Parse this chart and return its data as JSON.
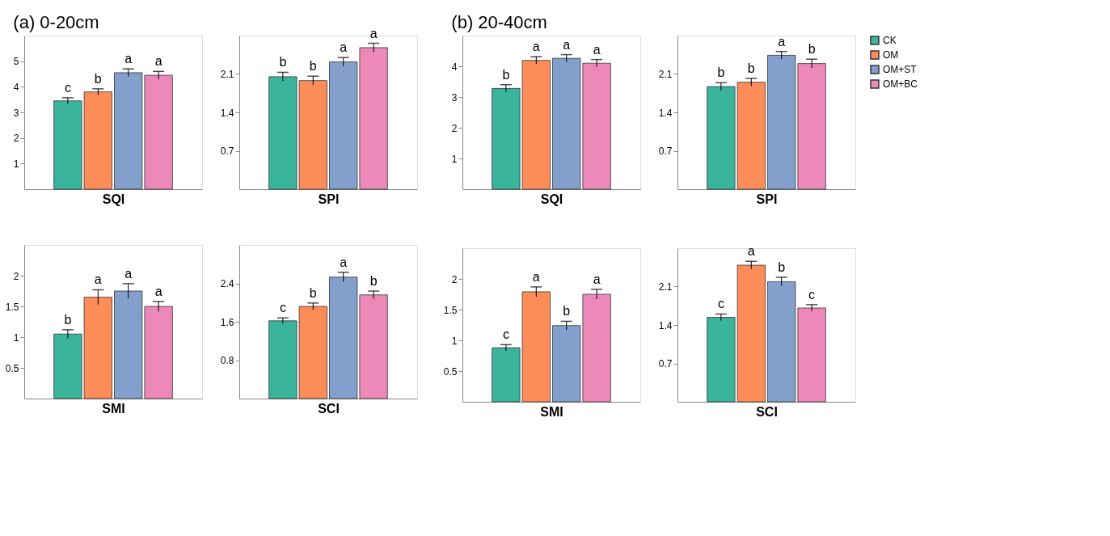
{
  "chart_data": [
    {
      "type": "bar",
      "title": "(a) 0-20cm",
      "xlabel": "SQI",
      "categories": [
        null
      ],
      "ylim": [
        0,
        6
      ],
      "yticks": [
        1,
        2,
        3,
        4,
        5
      ],
      "tick_labels": "y",
      "annotations": [
        "c",
        "b",
        "a",
        "a"
      ],
      "series": [
        {
          "color": "#3bb49c",
          "values": [
            3.45
          ],
          "errors": [
            0.12
          ]
        },
        {
          "color": "#fc8d59",
          "values": [
            3.8
          ],
          "errors": [
            0.12
          ]
        },
        {
          "color": "#839fcb",
          "values": [
            4.55
          ],
          "errors": [
            0.15
          ]
        },
        {
          "color": "#ec89b8",
          "values": [
            4.45
          ],
          "errors": [
            0.15
          ]
        }
      ]
    },
    {
      "type": "bar",
      "xlabel": "SPI",
      "categories": [
        null
      ],
      "ylim": [
        0,
        2.8
      ],
      "yticks": [
        0.7,
        1.4,
        2.1
      ],
      "tick_labels": "y",
      "annotations": [
        "b",
        "b",
        "a",
        "a"
      ],
      "series": [
        {
          "color": "#3bb49c",
          "values": [
            2.05
          ],
          "errors": [
            0.08
          ]
        },
        {
          "color": "#fc8d59",
          "values": [
            1.98
          ],
          "errors": [
            0.08
          ]
        },
        {
          "color": "#839fcb",
          "values": [
            2.32
          ],
          "errors": [
            0.08
          ]
        },
        {
          "color": "#ec89b8",
          "values": [
            2.58
          ],
          "errors": [
            0.08
          ]
        }
      ]
    },
    {
      "type": "bar",
      "xlabel": "SMI",
      "categories": [
        null
      ],
      "ylim": [
        0,
        2.5
      ],
      "yticks": [
        0.5,
        1,
        1.5,
        2
      ],
      "tick_labels": "y",
      "annotations": [
        "b",
        "a",
        "a",
        "a"
      ],
      "series": [
        {
          "color": "#3bb49c",
          "values": [
            1.05
          ],
          "errors": [
            0.07
          ]
        },
        {
          "color": "#fc8d59",
          "values": [
            1.65
          ],
          "errors": [
            0.12
          ]
        },
        {
          "color": "#839fcb",
          "values": [
            1.75
          ],
          "errors": [
            0.12
          ]
        },
        {
          "color": "#ec89b8",
          "values": [
            1.5
          ],
          "errors": [
            0.08
          ]
        }
      ]
    },
    {
      "type": "bar",
      "xlabel": "SCI",
      "categories": [
        null
      ],
      "ylim": [
        0,
        3.2
      ],
      "yticks": [
        0.8,
        1.6,
        2.4
      ],
      "tick_labels": "y",
      "annotations": [
        "c",
        "b",
        "a",
        "b"
      ],
      "series": [
        {
          "color": "#3bb49c",
          "values": [
            1.62
          ],
          "errors": [
            0.06
          ]
        },
        {
          "color": "#fc8d59",
          "values": [
            1.92
          ],
          "errors": [
            0.07
          ]
        },
        {
          "color": "#839fcb",
          "values": [
            2.53
          ],
          "errors": [
            0.1
          ]
        },
        {
          "color": "#ec89b8",
          "values": [
            2.16
          ],
          "errors": [
            0.08
          ]
        }
      ]
    },
    {
      "type": "bar",
      "title": "(b) 20-40cm",
      "xlabel": "SQI",
      "categories": [
        null
      ],
      "ylim": [
        0,
        5
      ],
      "yticks": [
        1,
        2,
        3,
        4
      ],
      "tick_labels": "y",
      "annotations": [
        "b",
        "a",
        "a",
        "a"
      ],
      "series": [
        {
          "color": "#3bb49c",
          "values": [
            3.28
          ],
          "errors": [
            0.12
          ]
        },
        {
          "color": "#fc8d59",
          "values": [
            4.19
          ],
          "errors": [
            0.12
          ]
        },
        {
          "color": "#839fcb",
          "values": [
            4.26
          ],
          "errors": [
            0.12
          ]
        },
        {
          "color": "#ec89b8",
          "values": [
            4.1
          ],
          "errors": [
            0.12
          ]
        }
      ]
    },
    {
      "type": "bar",
      "xlabel": "SPI",
      "categories": [
        null
      ],
      "ylim": [
        0,
        2.8
      ],
      "yticks": [
        0.7,
        1.4,
        2.1
      ],
      "tick_labels": "y",
      "legend": "top right",
      "annotations": [
        "b",
        "b",
        "a",
        "b"
      ],
      "series": [
        {
          "name": "CK",
          "color": "#3bb49c",
          "values": [
            1.87
          ],
          "errors": [
            0.07
          ]
        },
        {
          "name": "OM",
          "color": "#fc8d59",
          "values": [
            1.95
          ],
          "errors": [
            0.07
          ]
        },
        {
          "name": "OM+ST",
          "color": "#839fcb",
          "values": [
            2.44
          ],
          "errors": [
            0.07
          ]
        },
        {
          "name": "OM+BC",
          "color": "#ec89b8",
          "values": [
            2.29
          ],
          "errors": [
            0.08
          ]
        }
      ]
    },
    {
      "type": "bar",
      "xlabel": "SMI",
      "categories": [
        null
      ],
      "ylim": [
        0,
        2.5
      ],
      "yticks": [
        0.5,
        1,
        1.5,
        2
      ],
      "tick_labels": "y",
      "annotations": [
        "c",
        "a",
        "b",
        "a"
      ],
      "series": [
        {
          "color": "#3bb49c",
          "values": [
            0.88
          ],
          "errors": [
            0.05
          ]
        },
        {
          "color": "#fc8d59",
          "values": [
            1.79
          ],
          "errors": [
            0.08
          ]
        },
        {
          "color": "#839fcb",
          "values": [
            1.24
          ],
          "errors": [
            0.07
          ]
        },
        {
          "color": "#ec89b8",
          "values": [
            1.75
          ],
          "errors": [
            0.08
          ]
        }
      ]
    },
    {
      "type": "bar",
      "xlabel": "SCI",
      "categories": [
        null
      ],
      "ylim": [
        0,
        2.8
      ],
      "yticks": [
        0.7,
        1.4,
        2.1
      ],
      "tick_labels": "y",
      "annotations": [
        "c",
        "a",
        "b",
        "c"
      ],
      "series": [
        {
          "color": "#3bb49c",
          "values": [
            1.54
          ],
          "errors": [
            0.06
          ]
        },
        {
          "color": "#fc8d59",
          "values": [
            2.49
          ],
          "errors": [
            0.07
          ]
        },
        {
          "color": "#839fcb",
          "values": [
            2.19
          ],
          "errors": [
            0.08
          ]
        },
        {
          "color": "#ec89b8",
          "values": [
            1.71
          ],
          "errors": [
            0.06
          ]
        }
      ]
    }
  ]
}
